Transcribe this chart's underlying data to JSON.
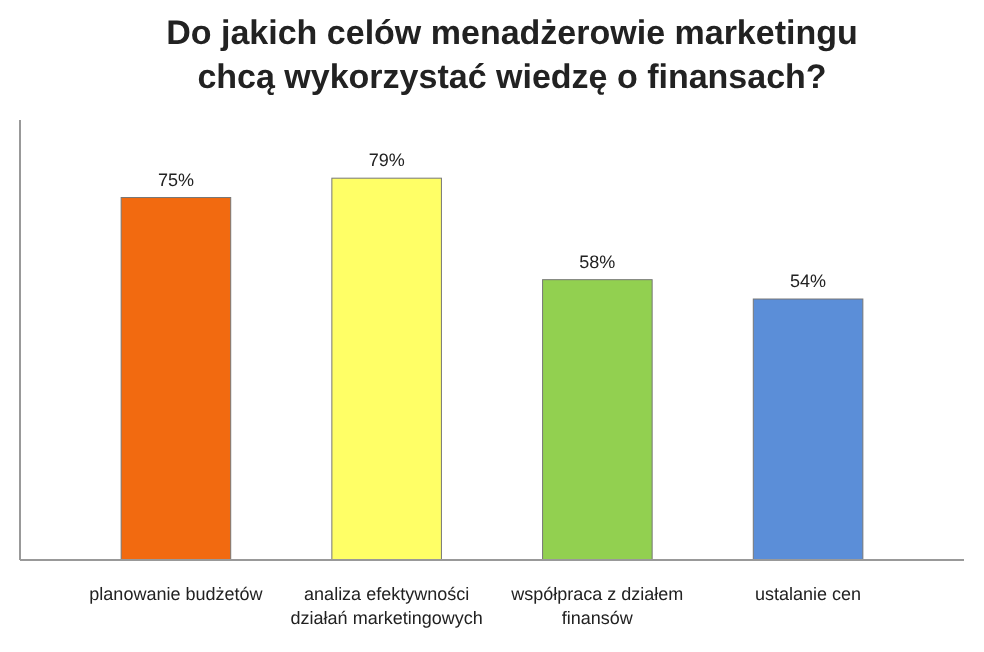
{
  "chart_data": {
    "type": "bar",
    "title": "Do jakich celów menadżerowie marketingu\nchcą wykorzystać wiedzę o finansach?",
    "categories": [
      "planowanie budżetów",
      "analiza efektywności działań marketingowych",
      "współpraca z działem finansów",
      "ustalanie cen"
    ],
    "values": [
      75,
      79,
      58,
      54
    ],
    "colors": [
      "#f26a10",
      "#ffff66",
      "#92d050",
      "#5b8ed8"
    ],
    "value_labels": [
      "75%",
      "79%",
      "58%",
      "54%"
    ],
    "grid": false
  }
}
